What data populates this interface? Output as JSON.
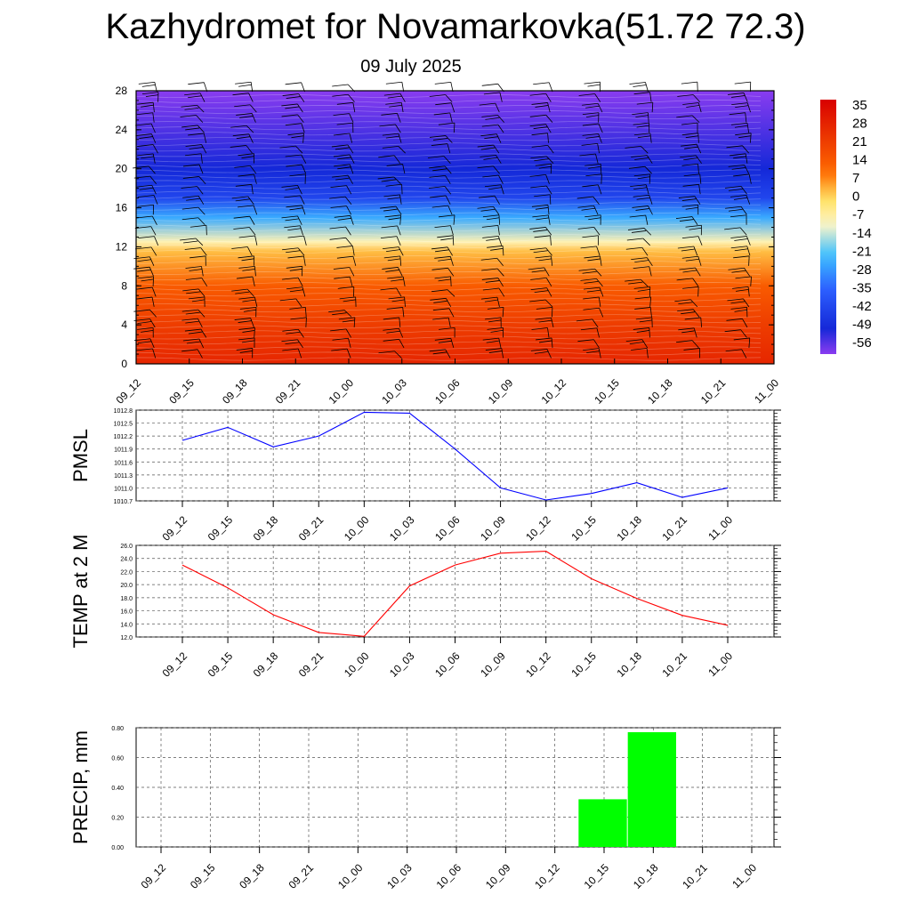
{
  "title": "Kazhydromet for Novamarkovka(51.72 72.3)",
  "subtitle": "09 July 2025",
  "chart_data": [
    {
      "type": "heatmap",
      "name": "temperature cross-section with wind barbs",
      "x_ticks": [
        "09_12",
        "09_15",
        "09_18",
        "09_21",
        "10_00",
        "10_03",
        "10_06",
        "10_09",
        "10_12",
        "10_15",
        "10_18",
        "10_21",
        "11_00"
      ],
      "y_ticks": [
        "0",
        "4",
        "8",
        "12",
        "16",
        "20",
        "24",
        "28"
      ],
      "ylim": [
        0,
        28
      ],
      "colorbar_labels": [
        "35",
        "28",
        "21",
        "14",
        "7",
        "0",
        "-7",
        "-14",
        "-21",
        "-28",
        "-35",
        "-42",
        "-49",
        "-56"
      ],
      "colorbar_range": [
        -60,
        38
      ],
      "temperature_profile": [
        {
          "level": 0,
          "value": 28
        },
        {
          "level": 4,
          "value": 22
        },
        {
          "level": 8,
          "value": 14
        },
        {
          "level": 11.5,
          "value": 3
        },
        {
          "level": 12.5,
          "value": -8
        },
        {
          "level": 15,
          "value": -25
        },
        {
          "level": 17,
          "value": -42
        },
        {
          "level": 20,
          "value": -50
        },
        {
          "level": 24,
          "value": -55
        },
        {
          "level": 28,
          "value": -60
        }
      ],
      "colors": {
        "hot": "#d80000",
        "orange": "#ff6a00",
        "yellow": "#ffe060",
        "light": "#fff6c8",
        "cyan": "#3cc0ff",
        "blue": "#2d60ff",
        "deep_blue": "#1428d8",
        "purple": "#8a3cf0"
      }
    },
    {
      "type": "line",
      "ylabel": "PMSL",
      "y_ticks": [
        "1012.8",
        "1012.5",
        "1012.2",
        "1011.9",
        "1011.6",
        "1011.3",
        "1011.0",
        "1010.7"
      ],
      "ylim": [
        1010.7,
        1012.8
      ],
      "x_ticks": [
        "09_12",
        "09_15",
        "09_18",
        "09_21",
        "10_00",
        "10_03",
        "10_06",
        "10_09",
        "10_12",
        "10_15",
        "10_18",
        "10_21",
        "11_00"
      ],
      "series": [
        {
          "values": [
            1012.1,
            1012.4,
            1011.95,
            1012.2,
            1012.75,
            1012.73,
            1011.9,
            1011.0,
            1010.72,
            1010.87,
            1011.12,
            1010.78,
            1011.0
          ],
          "color": "#0000ff"
        }
      ]
    },
    {
      "type": "line",
      "ylabel": "TEMP at 2 M",
      "y_ticks": [
        "26.0",
        "24.0",
        "22.0",
        "20.0",
        "18.0",
        "16.0",
        "14.0",
        "12.0"
      ],
      "ylim": [
        12,
        26
      ],
      "x_ticks": [
        "09_12",
        "09_15",
        "09_18",
        "09_21",
        "10_00",
        "10_03",
        "10_06",
        "10_09",
        "10_12",
        "10_15",
        "10_18",
        "10_21",
        "11_00"
      ],
      "series": [
        {
          "values": [
            23.0,
            19.5,
            15.4,
            12.7,
            12.1,
            19.8,
            23.0,
            24.8,
            25.1,
            20.9,
            17.9,
            15.3,
            13.8
          ],
          "color": "#ff0000"
        }
      ]
    },
    {
      "type": "bar",
      "ylabel": "PRECIP, mm",
      "y_ticks": [
        "0.80",
        "0.60",
        "0.40",
        "0.20",
        "0.00"
      ],
      "ylim": [
        0,
        0.8
      ],
      "x_ticks": [
        "09_12",
        "09_15",
        "09_18",
        "09_21",
        "10_00",
        "10_03",
        "10_06",
        "10_09",
        "10_12",
        "10_15",
        "10_18",
        "10_21",
        "11_00"
      ],
      "values": [
        0,
        0,
        0,
        0,
        0,
        0,
        0,
        0,
        0,
        0.32,
        0.77,
        0,
        0
      ],
      "color": "#00ff00"
    }
  ]
}
